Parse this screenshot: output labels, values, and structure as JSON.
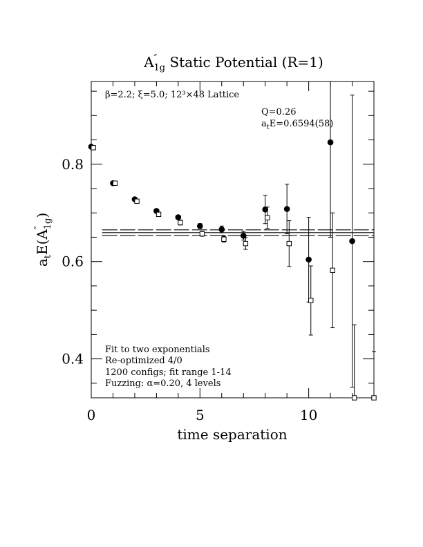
{
  "chart_data": {
    "type": "scatter",
    "title": {
      "main": "A",
      "sup": "″",
      "sub": "1g",
      "rest": " Static Potential (R=1)"
    },
    "xlabel": "time separation",
    "ylabel": {
      "main": "a",
      "sub1": "t",
      "mid": "E(A",
      "sup": "″",
      "sub2": "1g",
      "end": ")"
    },
    "xlim": [
      0,
      13
    ],
    "ylim": [
      0.32,
      0.97
    ],
    "x_ticks": [
      0,
      5,
      10
    ],
    "y_ticks": [
      0.4,
      0.6,
      0.8
    ],
    "x_tick_labels": [
      "0",
      "5",
      "10"
    ],
    "y_tick_labels": [
      "0.4",
      "0.6",
      "0.8"
    ],
    "grid": false,
    "annotations": {
      "lattice": "β=2.2; ξ=5.0; 12³×48 Lattice",
      "q": "Q=0.26",
      "energy": {
        "pre": "a",
        "sub": "t",
        "post": "E=0.6594(58)"
      },
      "fit_notes": [
        "Fit to two exponentials",
        "Re-optimized 4/0",
        "1200 configs; fit range 1-14",
        "Fuzzing: α=0.20, 4 levels"
      ]
    },
    "fit_band": {
      "x_start": 0.5,
      "x_end": 13,
      "center": 0.6594,
      "lower": 0.6536,
      "upper": 0.6652
    },
    "series": [
      {
        "marker": "filled-circle",
        "points": [
          {
            "x": 0,
            "y": 0.836,
            "err": 0.002
          },
          {
            "x": 1,
            "y": 0.761,
            "err": 0.002
          },
          {
            "x": 2,
            "y": 0.728,
            "err": 0.003
          },
          {
            "x": 3,
            "y": 0.704,
            "err": 0.004
          },
          {
            "x": 4,
            "y": 0.691,
            "err": 0.004
          },
          {
            "x": 5,
            "y": 0.673,
            "err": 0.005
          },
          {
            "x": 6,
            "y": 0.666,
            "err": 0.007
          },
          {
            "x": 7,
            "y": 0.653,
            "err": 0.009
          },
          {
            "x": 8,
            "y": 0.707,
            "err": 0.029
          },
          {
            "x": 9,
            "y": 0.708,
            "err": 0.051
          },
          {
            "x": 10,
            "y": 0.604,
            "err": 0.087
          },
          {
            "x": 11,
            "y": 0.845,
            "err": 0.195
          },
          {
            "x": 12,
            "y": 0.642,
            "err": 0.3
          }
        ]
      },
      {
        "marker": "open-square",
        "points": [
          {
            "x": 0.1,
            "y": 0.834,
            "err": 0.002
          },
          {
            "x": 1.1,
            "y": 0.761,
            "err": 0.002
          },
          {
            "x": 2.1,
            "y": 0.724,
            "err": 0.003
          },
          {
            "x": 3.1,
            "y": 0.697,
            "err": 0.004
          },
          {
            "x": 4.1,
            "y": 0.68,
            "err": 0.005
          },
          {
            "x": 5.1,
            "y": 0.657,
            "err": 0.005
          },
          {
            "x": 6.1,
            "y": 0.646,
            "err": 0.006
          },
          {
            "x": 7.1,
            "y": 0.637,
            "err": 0.012
          },
          {
            "x": 8.1,
            "y": 0.69,
            "err": 0.022
          },
          {
            "x": 9.1,
            "y": 0.637,
            "err": 0.047
          },
          {
            "x": 10.1,
            "y": 0.52,
            "err": 0.071
          },
          {
            "x": 11.1,
            "y": 0.582,
            "err": 0.118
          },
          {
            "x": 12.1,
            "y": 0.32,
            "err": 0.15
          },
          {
            "x": 13,
            "y": 0.32,
            "err": 0.095
          }
        ]
      }
    ]
  }
}
